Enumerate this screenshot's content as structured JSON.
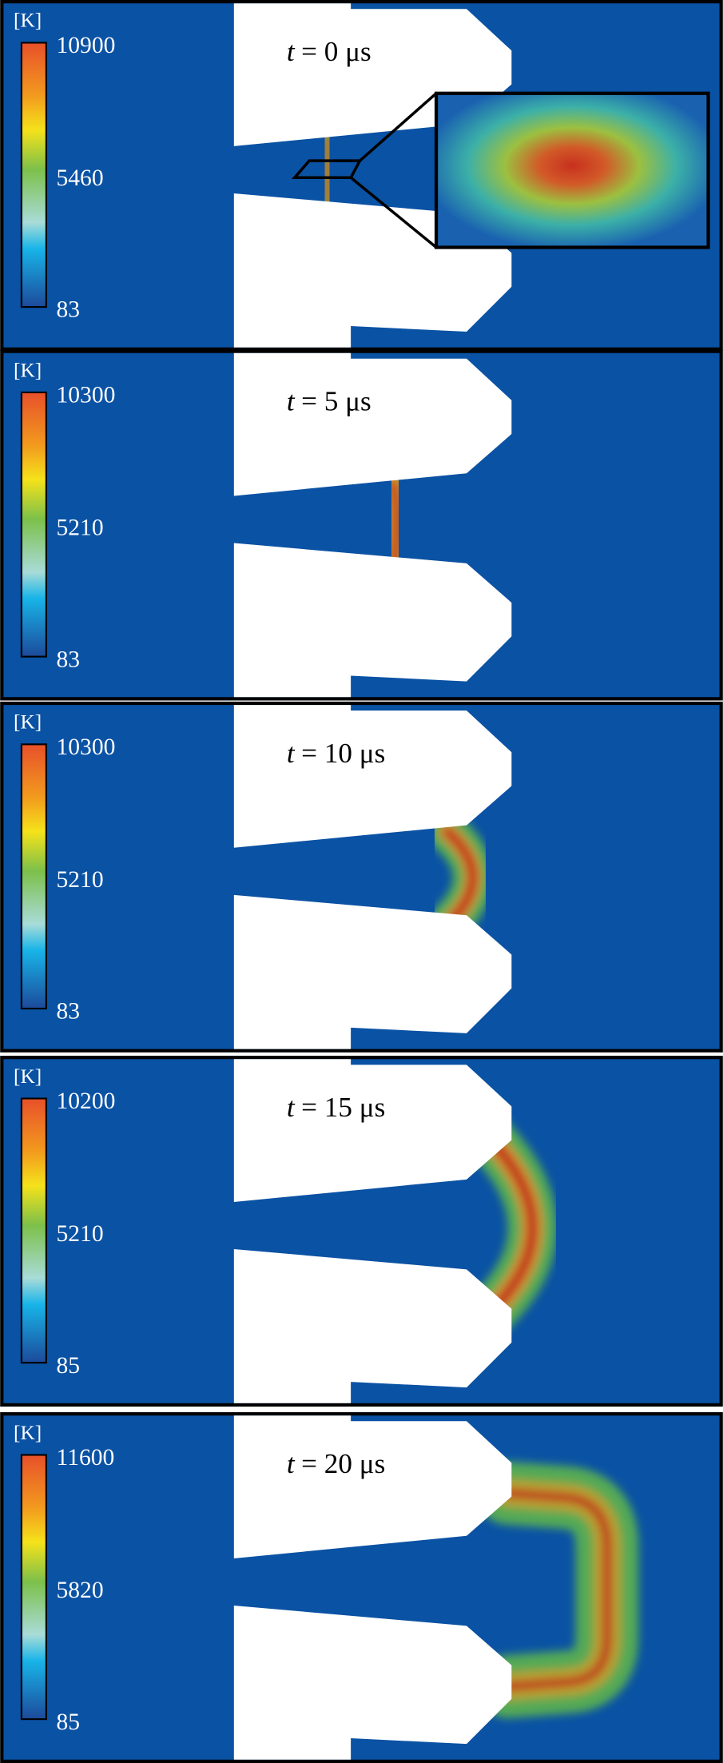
{
  "panels": [
    {
      "unit": "[K]",
      "max": 10900,
      "mid": 5460,
      "min": 83,
      "time_var": "t",
      "time_rest": "= 0 μs"
    },
    {
      "unit": "[K]",
      "max": 10300,
      "mid": 5210,
      "min": 83,
      "time_var": "t",
      "time_rest": "= 5 μs"
    },
    {
      "unit": "[K]",
      "max": 10300,
      "mid": 5210,
      "min": 83,
      "time_var": "t",
      "time_rest": "= 10 μs"
    },
    {
      "unit": "[K]",
      "max": 10200,
      "mid": 5210,
      "min": 85,
      "time_var": "t",
      "time_rest": "= 15 μs"
    },
    {
      "unit": "[K]",
      "max": 11600,
      "mid": 5820,
      "min": 85,
      "time_var": "t",
      "time_rest": "= 20 μs"
    }
  ]
}
